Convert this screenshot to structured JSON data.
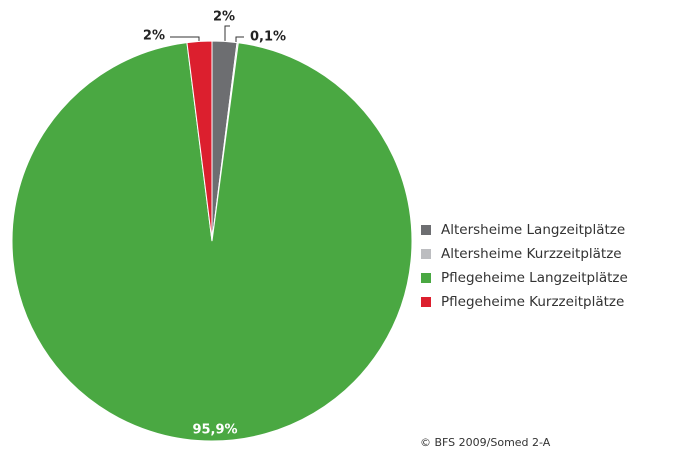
{
  "chart_data": {
    "type": "pie",
    "categories": [
      "Altersheime Langzeitplätze",
      "Altersheime Kurzzeitplätze",
      "Pflegeheime Langzeitplätze",
      "Pflegeheime Kurzzeitplätze"
    ],
    "values": [
      2,
      0.1,
      95.9,
      2
    ],
    "value_labels": [
      "2%",
      "0,1%",
      "95,9%",
      "2%"
    ],
    "colors": [
      "#6d6e71",
      "#bcbdc0",
      "#4aa842",
      "#dc1f2e"
    ],
    "source": "© BFS 2009/Somed 2-A"
  }
}
